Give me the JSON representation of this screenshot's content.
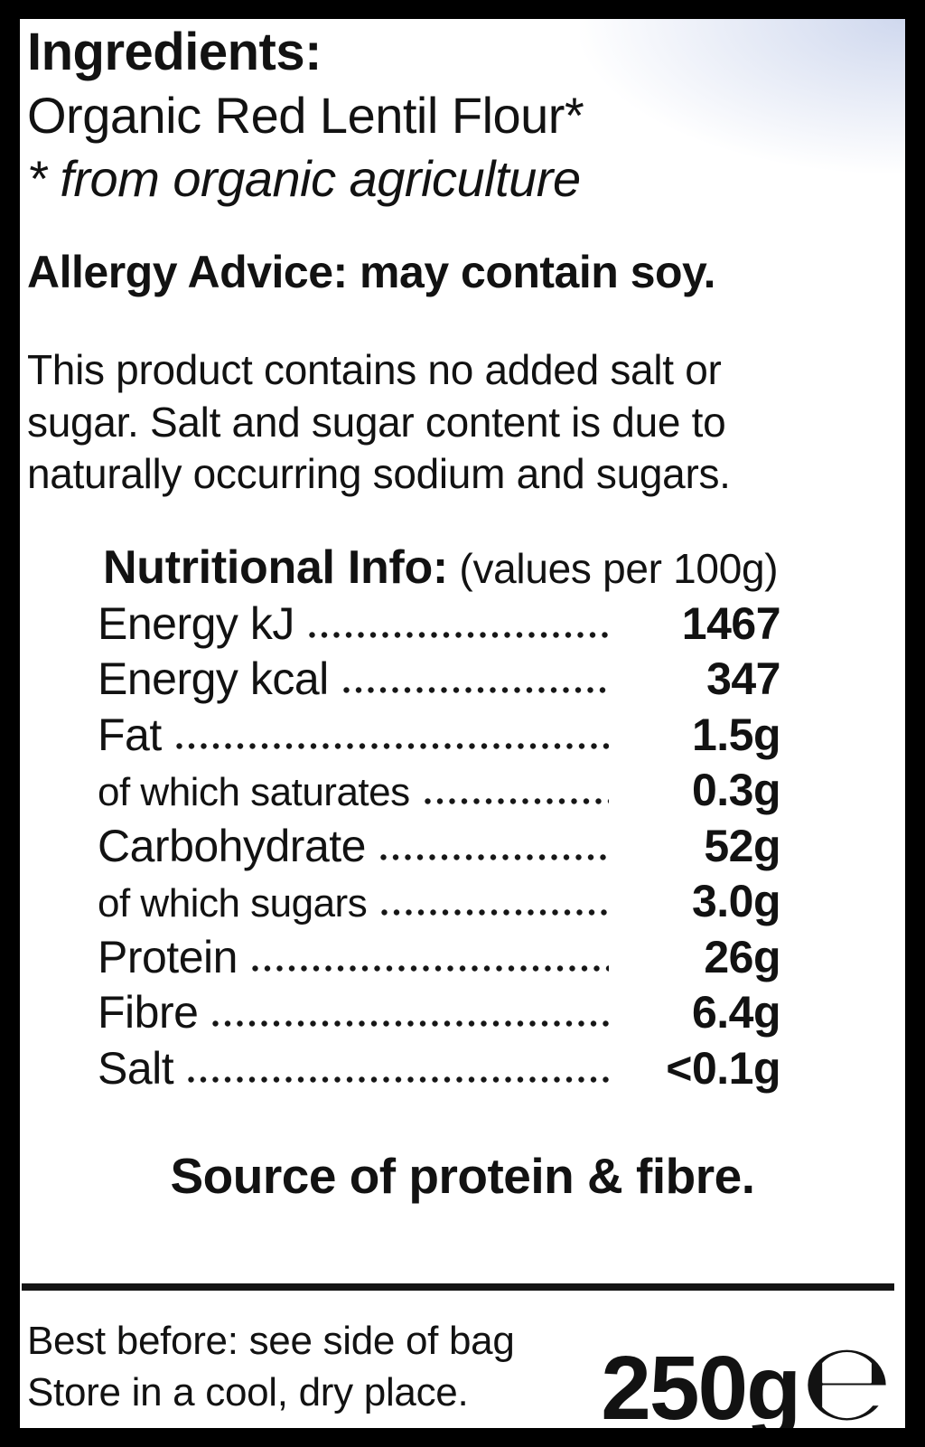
{
  "ingredients": {
    "title": "Ingredients:",
    "item": "Organic Red Lentil Flour*",
    "note": "* from organic agriculture"
  },
  "allergy": {
    "text": "Allergy Advice: may contain soy."
  },
  "product_note": {
    "lines": [
      "This product contains no added salt or",
      "sugar. Salt and sugar content is due to",
      "naturally occurring sodium and sugars."
    ]
  },
  "nutrition": {
    "heading": "Nutritional Info:",
    "heading_note": "(values per 100g)",
    "rows": [
      {
        "label": "Energy kJ",
        "value": "1467",
        "sub": false
      },
      {
        "label": "Energy kcal",
        "value": "347",
        "sub": false
      },
      {
        "label": "Fat",
        "value": "1.5g",
        "sub": false
      },
      {
        "label": "of which saturates",
        "value": "0.3g",
        "sub": true
      },
      {
        "label": "Carbohydrate",
        "value": "52g",
        "sub": false
      },
      {
        "label": "of which sugars",
        "value": "3.0g",
        "sub": true
      },
      {
        "label": "Protein",
        "value": "26g",
        "sub": false
      },
      {
        "label": "Fibre",
        "value": "6.4g",
        "sub": false
      },
      {
        "label": "Salt",
        "value": "<0.1g",
        "sub": false
      }
    ],
    "claim": "Source of protein & fibre."
  },
  "footer": {
    "best_before": "Best before: see side of bag",
    "storage": "Store in a cool, dry place.",
    "net_weight": "250g",
    "estimated_sign": "℮"
  },
  "colors": {
    "ink": "#121212",
    "paper": "#ffffff",
    "frame": "#000000"
  }
}
